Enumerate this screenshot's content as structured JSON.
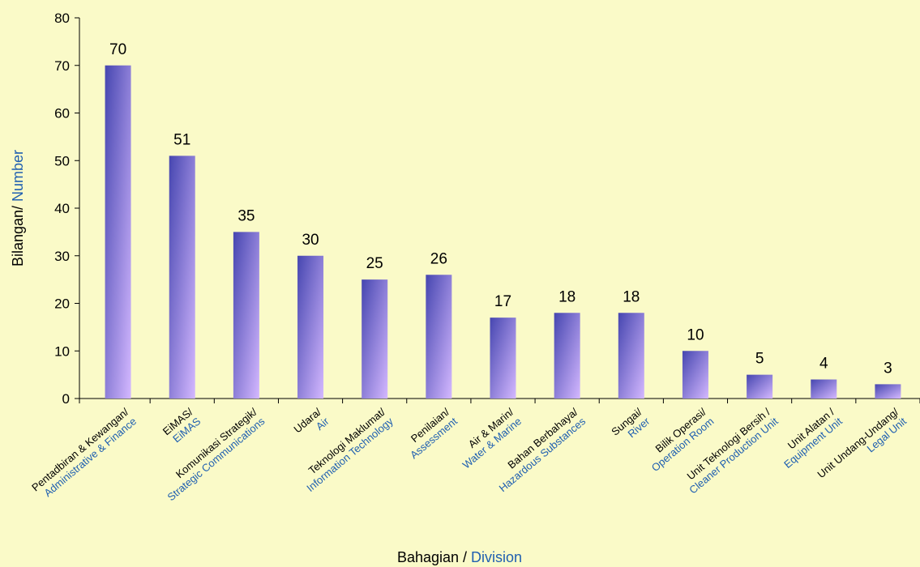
{
  "chart_data": {
    "type": "bar",
    "categories": [
      [
        "Pentadbiran & Kewangan/",
        "Administrative & Finance"
      ],
      [
        "EiMAS/",
        "EiMAS"
      ],
      [
        "Komunikasi Strategik/",
        "Strategic Communications"
      ],
      [
        "Udara/",
        "Air"
      ],
      [
        "Teknologi Maklumat/",
        "Information Technology"
      ],
      [
        "Penilaian/",
        "Assessment"
      ],
      [
        "Air & Marin/",
        "Water & Marine"
      ],
      [
        "Bahan Berbahaya/",
        "Hazardous Substances"
      ],
      [
        "Sungai/",
        "River"
      ],
      [
        "Bilik Operasi/",
        "Operation Room"
      ],
      [
        "Unit Teknologi Bersih /",
        "Cleaner Production Unit"
      ],
      [
        "Unit Alatan /",
        "Equipment Unit"
      ],
      [
        "Unit Undang-Undang/",
        "Legal Unit"
      ]
    ],
    "values": [
      70,
      51,
      35,
      30,
      25,
      26,
      17,
      18,
      18,
      10,
      5,
      4,
      3
    ],
    "gradient": [
      "#4646b0",
      "#d4b8ff"
    ],
    "ylim": [
      0,
      80
    ],
    "yticks": [
      0,
      10,
      20,
      30,
      40,
      50,
      60,
      70,
      80
    ],
    "xlabel": [
      "Bahagian /",
      "Division"
    ],
    "ylabel": [
      "Bilangan/",
      "Number"
    ]
  }
}
